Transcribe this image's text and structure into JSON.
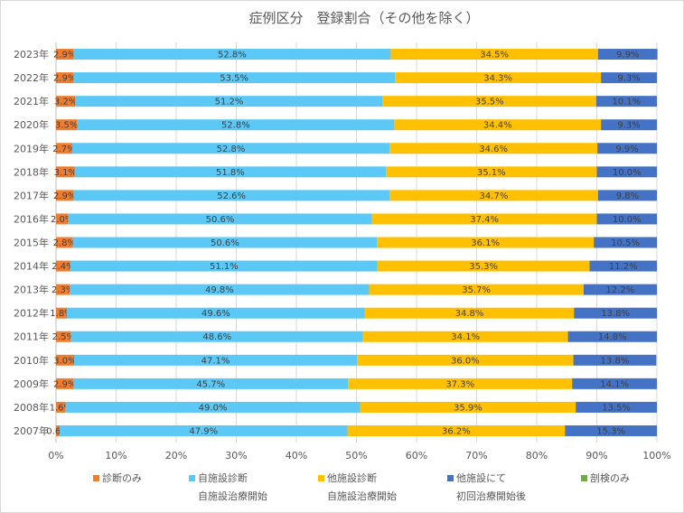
{
  "chart_data": {
    "type": "bar",
    "orientation": "horizontal",
    "stacked": "percent",
    "title": "症例区分　登録割合（その他を除く）",
    "categories": [
      "2023年",
      "2022年",
      "2021年",
      "2020年",
      "2019年",
      "2018年",
      "2017年",
      "2016年",
      "2015年",
      "2014年",
      "2013年",
      "2012年",
      "2011年",
      "2010年",
      "2009年",
      "2008年",
      "2007年"
    ],
    "series": [
      {
        "name": "診断のみ",
        "name_line2": "",
        "color": "#ed7d31",
        "values": [
          2.9,
          2.9,
          3.2,
          3.5,
          2.7,
          3.1,
          2.9,
          2.0,
          2.8,
          2.4,
          2.3,
          1.8,
          2.5,
          3.0,
          2.9,
          1.6,
          0.6
        ],
        "labels": [
          "2.9%",
          "2.9%",
          "3.2%",
          "3.5%",
          "2.7%",
          "3.1%",
          "2.9%",
          "2.0%",
          "2.8%",
          "2.4%",
          "2.3%",
          "1.8%",
          "2.5%",
          "3.0%",
          "2.9%",
          "1.6%",
          "0.6%"
        ]
      },
      {
        "name": "自施設診断",
        "name_line2": "自施設治療開始",
        "color": "#5bc8f5",
        "values": [
          52.8,
          53.5,
          51.2,
          52.8,
          52.8,
          51.8,
          52.6,
          50.6,
          50.6,
          51.1,
          49.8,
          49.6,
          48.6,
          47.1,
          45.7,
          49.0,
          47.9
        ],
        "labels": [
          "52.8%",
          "53.5%",
          "51.2%",
          "52.8%",
          "52.8%",
          "51.8%",
          "52.6%",
          "50.6%",
          "50.6%",
          "51.1%",
          "49.8%",
          "49.6%",
          "48.6%",
          "47.1%",
          "45.7%",
          "49.0%",
          "47.9%"
        ]
      },
      {
        "name": "他施設診断",
        "name_line2": "自施設治療開始",
        "color": "#ffc000",
        "values": [
          34.5,
          34.3,
          35.5,
          34.4,
          34.6,
          35.1,
          34.7,
          37.4,
          36.1,
          35.3,
          35.7,
          34.8,
          34.1,
          36.0,
          37.3,
          35.9,
          36.2
        ],
        "labels": [
          "34.5%",
          "34.3%",
          "35.5%",
          "34.4%",
          "34.6%",
          "35.1%",
          "34.7%",
          "37.4%",
          "36.1%",
          "35.3%",
          "35.7%",
          "34.8%",
          "34.1%",
          "36.0%",
          "37.3%",
          "35.9%",
          "36.2%"
        ]
      },
      {
        "name": "他施設にて",
        "name_line2": "初回治療開始後",
        "color": "#4472c4",
        "values": [
          9.9,
          9.3,
          10.1,
          9.3,
          9.9,
          10.0,
          9.8,
          10.0,
          10.5,
          11.2,
          12.2,
          13.8,
          14.8,
          13.8,
          14.1,
          13.5,
          15.3
        ],
        "labels": [
          "9.9%",
          "9.3%",
          "10.1%",
          "9.3%",
          "9.9%",
          "10.0%",
          "9.8%",
          "10.0%",
          "10.5%",
          "11.2%",
          "12.2%",
          "13.8%",
          "14.8%",
          "13.8%",
          "14.1%",
          "13.5%",
          "15.3%"
        ]
      },
      {
        "name": "剖検のみ",
        "name_line2": "",
        "color": "#70ad47",
        "values": [
          0,
          0,
          0,
          0,
          0,
          0,
          0,
          0,
          0,
          0,
          0,
          0,
          0,
          0,
          0,
          0,
          0
        ],
        "labels": []
      }
    ],
    "xlim": [
      0,
      100
    ],
    "xticks": [
      "0%",
      "10%",
      "20%",
      "30%",
      "40%",
      "50%",
      "60%",
      "70%",
      "80%",
      "90%",
      "100%"
    ],
    "grid": "vertical",
    "legend_position": "bottom"
  }
}
